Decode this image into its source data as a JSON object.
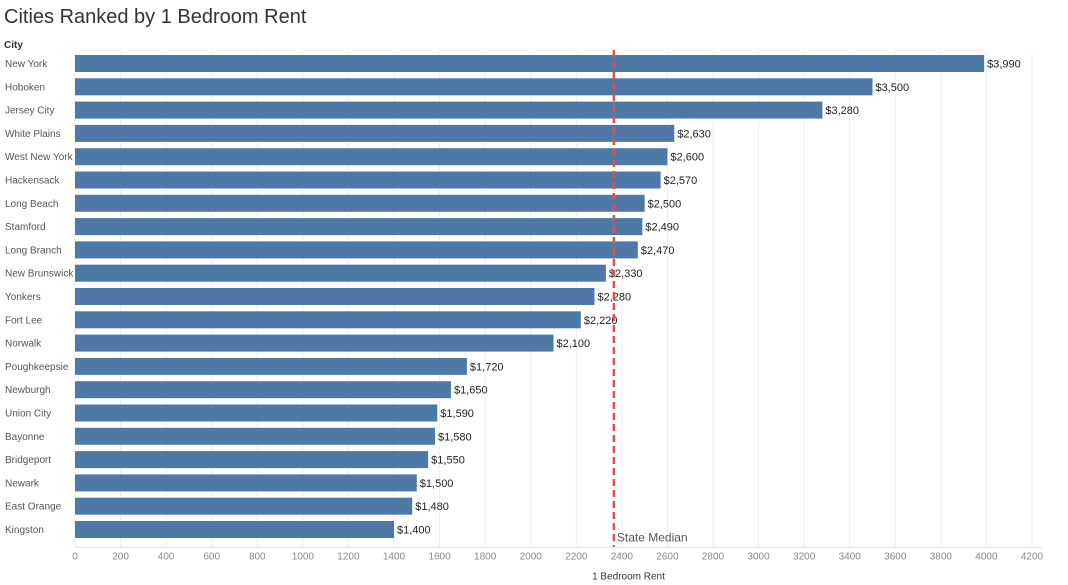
{
  "chart_data": {
    "type": "bar",
    "orientation": "horizontal",
    "title": "Cities Ranked by 1 Bedroom Rent",
    "category_header": "City",
    "xlabel": "1 Bedroom Rent",
    "xlim": [
      0,
      4200
    ],
    "xticks": [
      0,
      200,
      400,
      600,
      800,
      1000,
      1200,
      1400,
      1600,
      1800,
      2000,
      2200,
      2400,
      2600,
      2800,
      3000,
      3200,
      3400,
      3600,
      3800,
      4000,
      4200
    ],
    "grid": true,
    "bar_color": "#4e79a7",
    "categories": [
      "New York",
      "Hoboken",
      "Jersey City",
      "White Plains",
      "West New York",
      "Hackensack",
      "Long Beach",
      "Stamford",
      "Long Branch",
      "New Brunswick",
      "Yonkers",
      "Fort Lee",
      "Norwalk",
      "Poughkeepsie",
      "Newburgh",
      "Union City",
      "Bayonne",
      "Bridgeport",
      "Newark",
      "East Orange",
      "Kingston"
    ],
    "values": [
      3990,
      3500,
      3280,
      2630,
      2600,
      2570,
      2500,
      2490,
      2470,
      2330,
      2280,
      2220,
      2100,
      1720,
      1650,
      1590,
      1580,
      1550,
      1500,
      1480,
      1400
    ],
    "value_labels": [
      "$3,990",
      "$3,500",
      "$3,280",
      "$2,630",
      "$2,600",
      "$2,570",
      "$2,500",
      "$2,490",
      "$2,470",
      "$2,330",
      "$2,280",
      "$2,220",
      "$2,100",
      "$1,720",
      "$1,650",
      "$1,590",
      "$1,580",
      "$1,550",
      "$1,500",
      "$1,480",
      "$1,400"
    ],
    "reference_line": {
      "label": "State Median",
      "value": 2365,
      "color": "#d9534f",
      "style": "dashed"
    }
  }
}
